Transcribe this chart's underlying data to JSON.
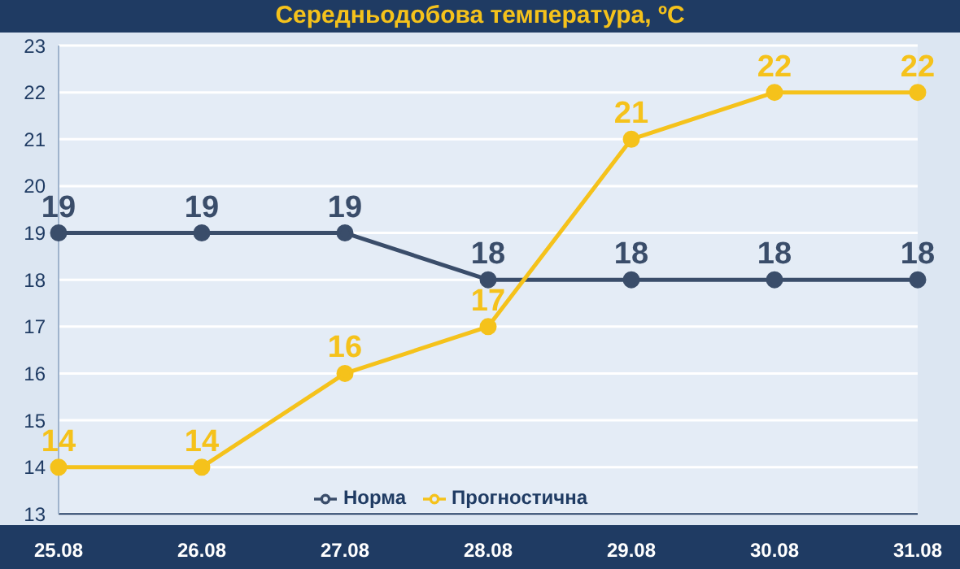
{
  "chart_data": {
    "type": "line",
    "title": "Середньодобова температура, ºC",
    "categories": [
      "25.08",
      "26.08",
      "27.08",
      "28.08",
      "29.08",
      "30.08",
      "31.08"
    ],
    "series": [
      {
        "name": "Норма",
        "color": "#3a4d6a",
        "values": [
          19,
          19,
          19,
          18,
          18,
          18,
          18
        ]
      },
      {
        "name": "Прогностична",
        "color": "#f5c21b",
        "values": [
          14,
          14,
          16,
          17,
          21,
          22,
          22
        ]
      }
    ],
    "ylim": [
      13,
      23
    ],
    "yticks": [
      13,
      14,
      15,
      16,
      17,
      18,
      19,
      20,
      21,
      22,
      23
    ],
    "grid": "y",
    "legend": "bottom",
    "marker": "circle",
    "data_labels": true
  }
}
